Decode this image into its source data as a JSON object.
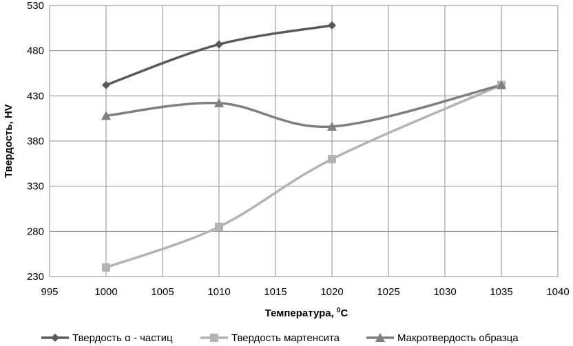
{
  "chart_data": {
    "type": "line",
    "xlabel": "Температура, ",
    "xlabel_sup": "0",
    "xlabel_unit": "C",
    "ylabel": "Твердость, HV",
    "xlim": [
      995,
      1040
    ],
    "ylim": [
      230,
      530
    ],
    "xticks": [
      995,
      1000,
      1005,
      1010,
      1015,
      1020,
      1025,
      1030,
      1035,
      1040
    ],
    "yticks": [
      230,
      280,
      330,
      380,
      430,
      480,
      530
    ],
    "grid": true,
    "smooth": true,
    "legend_position": "bottom",
    "series": [
      {
        "name": "Твердость α - частиц",
        "color": "#595959",
        "marker": "diamond",
        "x": [
          1000,
          1010,
          1020
        ],
        "y": [
          442,
          487,
          508
        ]
      },
      {
        "name": "Твердость мартенсита",
        "color": "#b3b3b3",
        "marker": "square",
        "x": [
          1000,
          1010,
          1020,
          1035
        ],
        "y": [
          240,
          285,
          360,
          442
        ]
      },
      {
        "name": "Макротвердость образца",
        "color": "#7f7f7f",
        "marker": "triangle",
        "x": [
          1000,
          1010,
          1020,
          1035
        ],
        "y": [
          408,
          422,
          396,
          442
        ]
      }
    ]
  }
}
